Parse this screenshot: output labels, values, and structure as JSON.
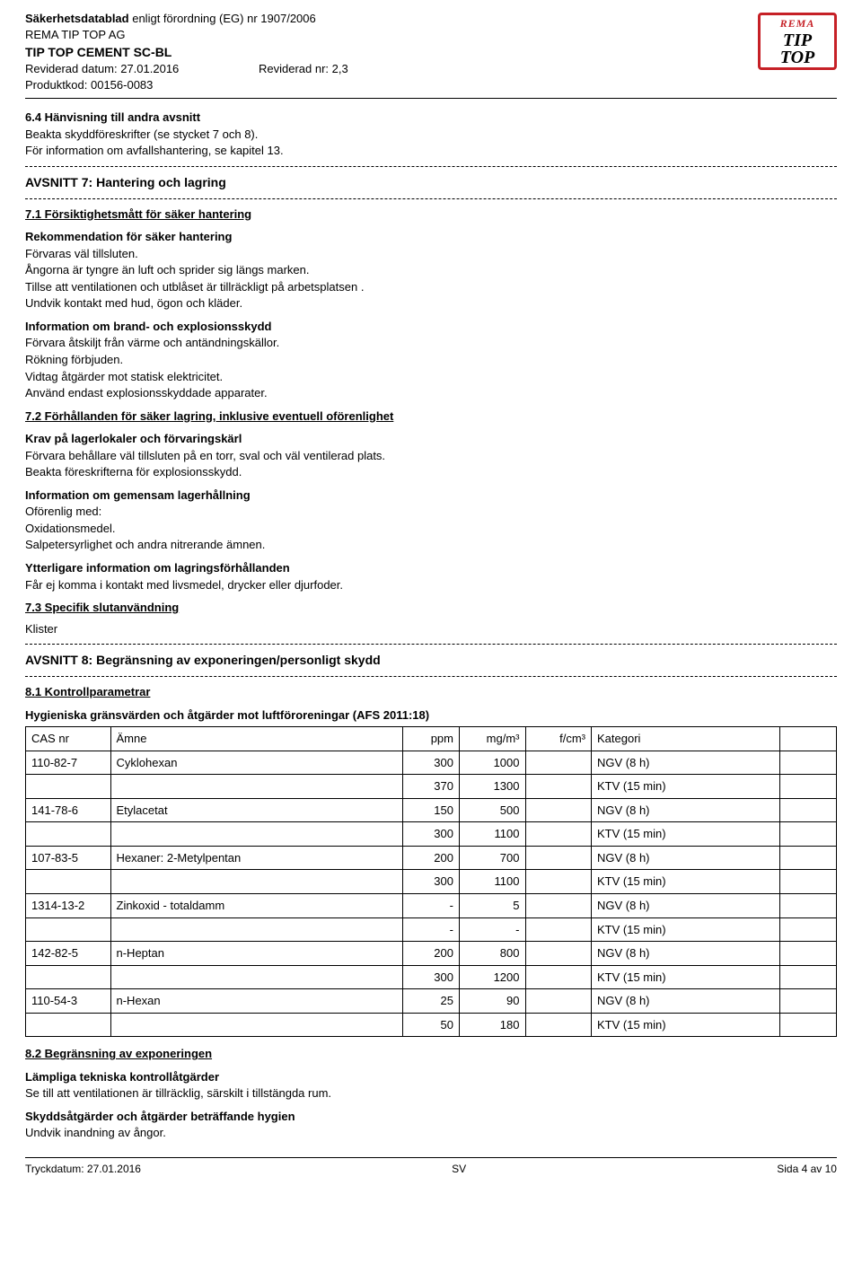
{
  "header": {
    "line1_pre": "Säkerhetsdatablad",
    "line1_post": " enligt förordning (EG) nr 1907/2006",
    "company": "REMA TIP TOP AG",
    "product": "TIP TOP CEMENT SC-BL",
    "rev_date_label": "Reviderad datum: 27.01.2016",
    "rev_nr_label": "Reviderad nr: 2,3",
    "prod_code": "Produktkod: 00156-0083",
    "logo_rema": "REMA",
    "logo_tip": "TIP",
    "logo_top": "TOP"
  },
  "s64": {
    "title": "6.4 Hänvisning till andra avsnitt",
    "l1": "Beakta skyddföreskrifter (se stycket 7 och 8).",
    "l2": "För information om avfallshantering, se kapitel 13."
  },
  "s7": {
    "title": "AVSNITT 7: Hantering och lagring",
    "s71": "7.1 Försiktighetsmått för säker hantering",
    "rec_title": "Rekommendation för säker hantering",
    "rec1": "Förvaras väl tillsluten.",
    "rec2": "Ångorna är tyngre än luft och sprider sig längs marken.",
    "rec3": "Tillse att ventilationen och utblåset är tillräckligt på arbetsplatsen .",
    "rec4": "Undvik kontakt med hud, ögon och kläder.",
    "fire_title": "Information om brand- och explosionsskydd",
    "fire1": "Förvara åtskiljt från värme och antändningskällor.",
    "fire2": "Rökning förbjuden.",
    "fire3": "Vidtag åtgärder mot statisk elektricitet.",
    "fire4": "Använd endast explosionsskyddade apparater.",
    "s72": "7.2 Förhållanden för säker lagring, inklusive eventuell oförenlighet",
    "krav_title": "Krav på lagerlokaler och förvaringskärl",
    "krav1": "Förvara behållare väl tillsluten på en torr, sval och väl ventilerad plats.",
    "krav2": "Beakta föreskrifterna för explosionsskydd.",
    "gem_title": "Information om gemensam lagerhållning",
    "gem1": "Oförenlig med:",
    "gem2": "Oxidationsmedel.",
    "gem3": "Salpetersyrlighet och andra nitrerande ämnen.",
    "ytt_title": "Ytterligare information om lagringsförhållanden",
    "ytt1": "Får ej komma i kontakt med livsmedel, drycker eller djurfoder.",
    "s73": "7.3 Specifik slutanvändning",
    "klister": "Klister"
  },
  "s8": {
    "title": "AVSNITT 8: Begränsning av exponeringen/personligt skydd",
    "s81": "8.1 Kontrollparametrar",
    "hyg_title": "Hygieniska gränsvärden och åtgärder mot luftföroreningar (AFS 2011:18)",
    "s82": "8.2 Begränsning av exponeringen",
    "tech_title": "Lämpliga tekniska kontrollåtgärder",
    "tech1": "Se till att ventilationen är tillräcklig, särskilt i tillstängda rum.",
    "hyg2_title": "Skyddsåtgärder och åtgärder beträffande hygien",
    "hyg21": "Undvik inandning av ångor."
  },
  "table": {
    "h_cas": "CAS nr",
    "h_amne": "Ämne",
    "h_ppm": "ppm",
    "h_mgm3": "mg/m³",
    "h_fcm3": "f/cm³",
    "h_kat": "Kategori",
    "rows": [
      {
        "cas": "110-82-7",
        "amne": "Cyklohexan",
        "ppm": "300",
        "mgm3": "1000",
        "fcm3": "",
        "kat": "NGV (8 h)"
      },
      {
        "cas": "",
        "amne": "",
        "ppm": "370",
        "mgm3": "1300",
        "fcm3": "",
        "kat": "KTV (15 min)"
      },
      {
        "cas": "141-78-6",
        "amne": "Etylacetat",
        "ppm": "150",
        "mgm3": "500",
        "fcm3": "",
        "kat": "NGV (8 h)"
      },
      {
        "cas": "",
        "amne": "",
        "ppm": "300",
        "mgm3": "1100",
        "fcm3": "",
        "kat": "KTV (15 min)"
      },
      {
        "cas": "107-83-5",
        "amne": "Hexaner: 2-Metylpentan",
        "ppm": "200",
        "mgm3": "700",
        "fcm3": "",
        "kat": "NGV (8 h)"
      },
      {
        "cas": "",
        "amne": "",
        "ppm": "300",
        "mgm3": "1100",
        "fcm3": "",
        "kat": "KTV (15 min)"
      },
      {
        "cas": "1314-13-2",
        "amne": "Zinkoxid - totaldamm",
        "ppm": "-",
        "mgm3": "5",
        "fcm3": "",
        "kat": "NGV (8 h)"
      },
      {
        "cas": "",
        "amne": "",
        "ppm": "-",
        "mgm3": "-",
        "fcm3": "",
        "kat": "KTV (15 min)"
      },
      {
        "cas": "142-82-5",
        "amne": "n-Heptan",
        "ppm": "200",
        "mgm3": "800",
        "fcm3": "",
        "kat": "NGV (8 h)"
      },
      {
        "cas": "",
        "amne": "",
        "ppm": "300",
        "mgm3": "1200",
        "fcm3": "",
        "kat": "KTV (15 min)"
      },
      {
        "cas": "110-54-3",
        "amne": "n-Hexan",
        "ppm": "25",
        "mgm3": "90",
        "fcm3": "",
        "kat": "NGV (8 h)"
      },
      {
        "cas": "",
        "amne": "",
        "ppm": "50",
        "mgm3": "180",
        "fcm3": "",
        "kat": "KTV (15 min)"
      }
    ]
  },
  "footer": {
    "left": "Tryckdatum: 27.01.2016",
    "center": "SV",
    "right": "Sida 4 av 10"
  }
}
